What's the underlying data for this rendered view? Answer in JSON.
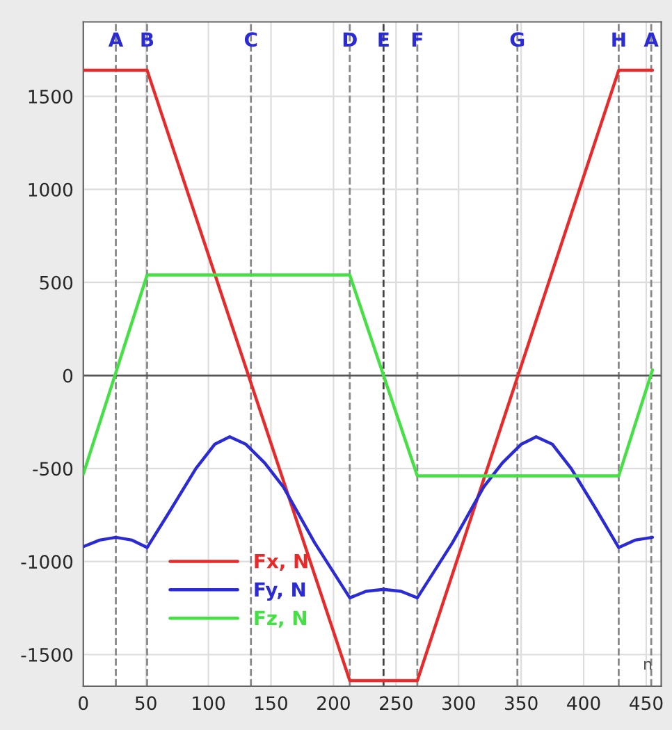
{
  "chart_data": {
    "type": "line",
    "series": [
      {
        "name": "Fx, N",
        "color": "#e82a2a",
        "x": [
          0,
          51,
          213,
          267,
          428,
          455
        ],
        "values": [
          1640,
          1640,
          -1640,
          -1640,
          1640,
          1640
        ]
      },
      {
        "name": "Fy, N",
        "color": "#2b2bd6",
        "x": [
          0,
          13,
          26,
          39,
          51,
          70,
          90,
          105,
          117,
          130,
          145,
          160,
          185,
          213,
          226,
          240,
          254,
          267,
          295,
          320,
          335,
          350,
          362,
          375,
          390,
          410,
          428,
          441,
          455
        ],
        "values": [
          -920,
          -885,
          -870,
          -885,
          -925,
          -720,
          -500,
          -370,
          -330,
          -370,
          -470,
          -600,
          -900,
          -1195,
          -1160,
          -1150,
          -1160,
          -1195,
          -900,
          -600,
          -470,
          -370,
          -330,
          -370,
          -500,
          -720,
          -925,
          -885,
          -870
        ]
      },
      {
        "name": "Fz, N",
        "color": "#44e044",
        "x": [
          0,
          51,
          213,
          267,
          428,
          455
        ],
        "values": [
          -530,
          540,
          540,
          -540,
          -540,
          30
        ]
      }
    ],
    "xlim": [
      0,
      462
    ],
    "ylim": [
      -1670,
      1900
    ],
    "xticks": [
      0,
      50,
      100,
      150,
      200,
      250,
      300,
      350,
      400,
      450
    ],
    "yticks": [
      -1500,
      -1000,
      -500,
      0,
      500,
      1000,
      1500
    ],
    "grid": true,
    "legend": "bottom left",
    "ref_lines": [
      {
        "axis": "x",
        "value": 26,
        "label": "A",
        "color": "#888888",
        "line_style": "dashed"
      },
      {
        "axis": "x",
        "value": 51,
        "label": "B",
        "color": "#888888",
        "line_style": "dashed"
      },
      {
        "axis": "x",
        "value": 134,
        "label": "C",
        "color": "#888888",
        "line_style": "dashed"
      },
      {
        "axis": "x",
        "value": 213,
        "label": "D",
        "color": "#888888",
        "line_style": "dashed"
      },
      {
        "axis": "x",
        "value": 240,
        "label": "E",
        "color": "#444444",
        "line_style": "dashed"
      },
      {
        "axis": "x",
        "value": 267,
        "label": "F",
        "color": "#888888",
        "line_style": "dashed"
      },
      {
        "axis": "x",
        "value": 347,
        "label": "G",
        "color": "#888888",
        "line_style": "dashed"
      },
      {
        "axis": "x",
        "value": 428,
        "label": "H",
        "color": "#888888",
        "line_style": "dashed"
      },
      {
        "axis": "x",
        "value": 454,
        "label": "A",
        "color": "#888888",
        "line_style": "dashed"
      },
      {
        "axis": "y",
        "value": 0,
        "color": "#555555",
        "line_style": "solid"
      }
    ],
    "annotations": [
      "n"
    ]
  }
}
